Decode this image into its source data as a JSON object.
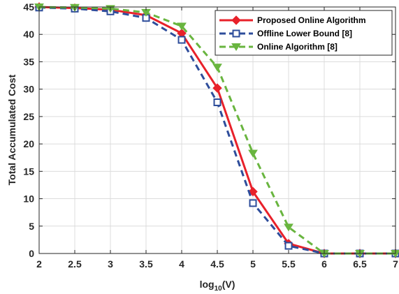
{
  "chart_data": {
    "type": "line",
    "xlabel": "log",
    "xlabel_sub": "10",
    "xlabel_suffix": "(V)",
    "ylabel": "Total Accumulated Cost",
    "xlim": [
      2,
      7
    ],
    "ylim": [
      0,
      45
    ],
    "xticks": [
      2,
      2.5,
      3,
      3.5,
      4,
      4.5,
      5,
      5.5,
      6,
      6.5,
      7
    ],
    "xtick_labels": [
      "2",
      "2.5",
      "3",
      "3.5",
      "4",
      "4.5",
      "5",
      "5.5",
      "6",
      "6.5",
      "7"
    ],
    "yticks": [
      0,
      5,
      10,
      15,
      20,
      25,
      30,
      35,
      40,
      45
    ],
    "ytick_labels": [
      "0",
      "5",
      "10",
      "15",
      "20",
      "25",
      "30",
      "35",
      "40",
      "45"
    ],
    "grid": true,
    "legend_position": "top-right",
    "x": [
      2,
      2.5,
      3,
      3.5,
      4,
      4.5,
      5,
      5.5,
      6,
      6.5,
      7
    ],
    "series": [
      {
        "name": "Proposed Online Algorithm",
        "values": [
          45,
          44.8,
          44.5,
          43.5,
          40.2,
          30.2,
          11.3,
          1.8,
          0,
          0,
          0
        ],
        "color": "#e8212a",
        "line_style": "solid",
        "marker": "diamond"
      },
      {
        "name": "Offline Lower Bound [8]",
        "values": [
          44.9,
          44.7,
          44.2,
          43.0,
          39.0,
          27.6,
          9.2,
          1.4,
          0,
          0,
          0
        ],
        "color": "#2e4d9b",
        "line_style": "dashed",
        "marker": "square"
      },
      {
        "name": "Online Algorithm [8]",
        "values": [
          45,
          44.9,
          44.7,
          44.0,
          41.5,
          34.0,
          18.3,
          4.8,
          0,
          0,
          0
        ],
        "color": "#69b53f",
        "line_style": "dashed",
        "marker": "triangle-down"
      }
    ]
  }
}
